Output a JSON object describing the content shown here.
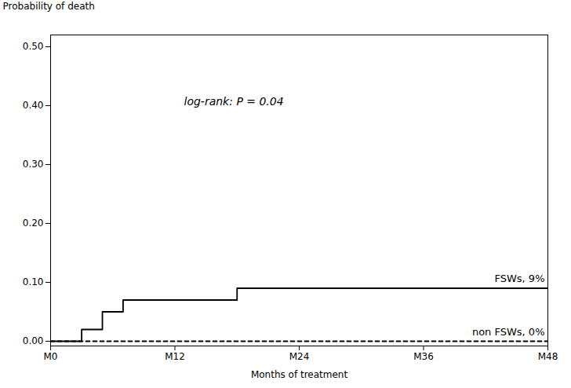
{
  "chart_data": {
    "type": "line",
    "xlabel": "Months of treatment",
    "ylabel": "Probability of death",
    "annotations": [
      "log-rank: P = 0.04"
    ],
    "series": [
      {
        "name": "FSWs, 9%",
        "color": "#000000",
        "line_style": "solid",
        "x": [
          0,
          3,
          3,
          5,
          5,
          7,
          7,
          18,
          18,
          48
        ],
        "values": [
          0.0,
          0.0,
          0.02,
          0.02,
          0.05,
          0.05,
          0.07,
          0.07,
          0.09,
          0.09
        ]
      },
      {
        "name": "non FSWs, 0%",
        "color": "#000000",
        "line_style": "dashed",
        "x": [
          0,
          48
        ],
        "values": [
          0.0,
          0.0
        ]
      }
    ],
    "xlim": [
      0,
      48
    ],
    "ylim": [
      -0.008,
      0.52
    ],
    "xticks": [
      {
        "value": 0,
        "label": "M0"
      },
      {
        "value": 12,
        "label": "M12"
      },
      {
        "value": 24,
        "label": "M24"
      },
      {
        "value": 36,
        "label": "M36"
      },
      {
        "value": 48,
        "label": "M48"
      }
    ],
    "yticks": [
      {
        "value": 0.0,
        "label": "0.00"
      },
      {
        "value": 0.1,
        "label": "0.10"
      },
      {
        "value": 0.2,
        "label": "0.20"
      },
      {
        "value": 0.3,
        "label": "0.30"
      },
      {
        "value": 0.4,
        "label": "0.40"
      },
      {
        "value": 0.5,
        "label": "0.50"
      }
    ],
    "grid": false
  }
}
